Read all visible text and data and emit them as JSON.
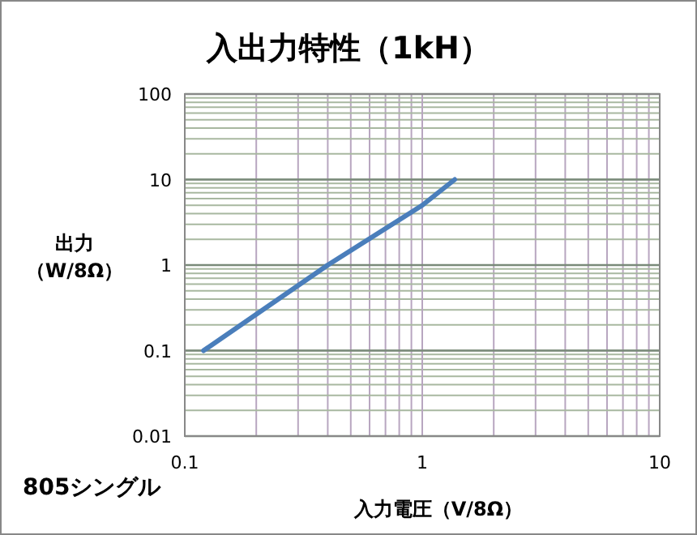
{
  "chart_data": {
    "type": "line",
    "title": "入出力特性（1kH）",
    "xlabel": "入力電圧（V/8Ω）",
    "ylabel": "出力（W/8Ω）",
    "annotations": [
      "805シングル"
    ],
    "series": [
      {
        "color": "#4a7ebb",
        "x": [
          0.12,
          0.4,
          1,
          1.37
        ],
        "values": [
          0.1,
          1,
          5,
          10
        ]
      }
    ],
    "xlim": [
      0.1,
      10
    ],
    "xticks": [
      0.1,
      1,
      10
    ],
    "ylim": [
      0.01,
      100
    ],
    "yticks": [
      0.01,
      0.1,
      1,
      10,
      100
    ],
    "log": "xy",
    "grid": true,
    "marker": "none",
    "line_style": "solid"
  }
}
